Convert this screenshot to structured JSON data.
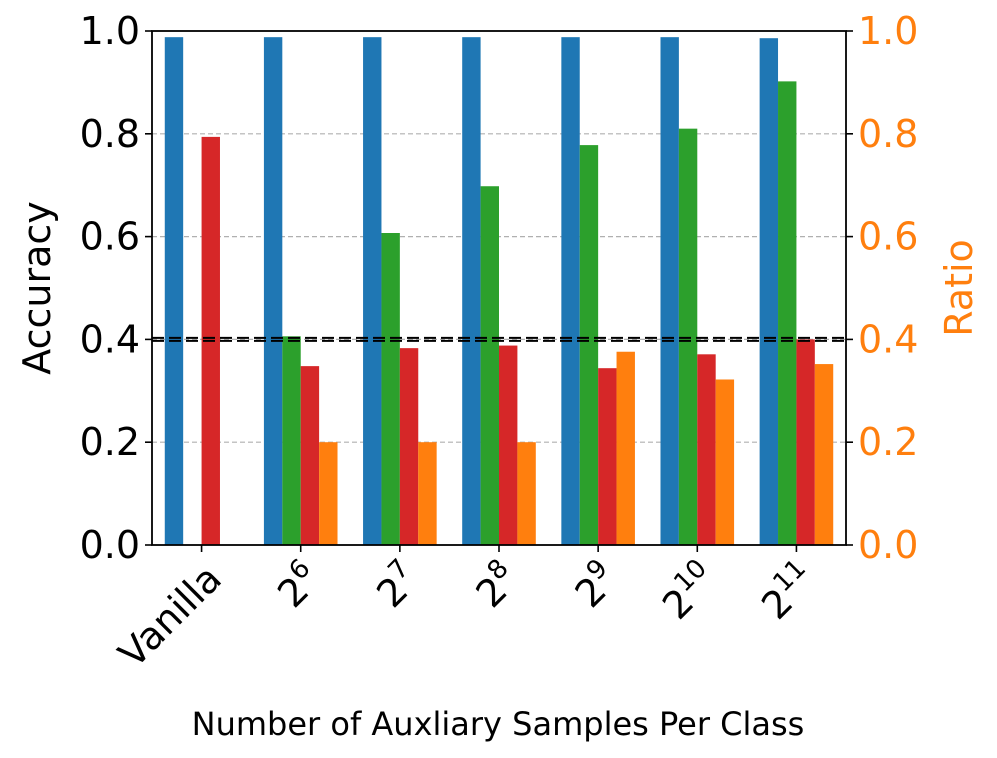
{
  "chart_data": {
    "type": "bar",
    "categories": [
      {
        "base": "Vanilla",
        "exp": ""
      },
      {
        "base": "2",
        "exp": "6"
      },
      {
        "base": "2",
        "exp": "7"
      },
      {
        "base": "2",
        "exp": "8"
      },
      {
        "base": "2",
        "exp": "9"
      },
      {
        "base": "2",
        "exp": "10"
      },
      {
        "base": "2",
        "exp": "11"
      }
    ],
    "series": [
      {
        "name": "blue",
        "axis": "left",
        "color": "#1f77b4",
        "values": [
          0.988,
          0.988,
          0.988,
          0.988,
          0.988,
          0.988,
          0.986
        ]
      },
      {
        "name": "green",
        "axis": "left",
        "color": "#2ca02c",
        "values": [
          null,
          0.406,
          0.607,
          0.698,
          0.778,
          0.81,
          0.902
        ]
      },
      {
        "name": "red",
        "axis": "left",
        "color": "#d62728",
        "values": [
          0.794,
          0.348,
          0.383,
          0.388,
          0.344,
          0.371,
          0.4
        ]
      },
      {
        "name": "orange",
        "axis": "right",
        "color": "#ff7f0e",
        "values": [
          null,
          0.2,
          0.2,
          0.2,
          0.376,
          0.322,
          0.352
        ]
      }
    ],
    "xlabel": "Number of Auxliary Samples Per Class",
    "ylabel": "Accuracy",
    "ylabel_right": "Ratio",
    "ylim": [
      0.0,
      1.0
    ],
    "ylim_right": [
      0.0,
      1.0
    ],
    "yticks": [
      "0.0",
      "0.2",
      "0.4",
      "0.6",
      "0.8",
      "1.0"
    ],
    "yticks_right": [
      "0.0",
      "0.2",
      "0.4",
      "0.6",
      "0.8",
      "1.0"
    ],
    "hlines": [
      {
        "y": 0.4,
        "style": "dashed",
        "color": "#000000"
      },
      {
        "y": 0.4,
        "style": "dashed",
        "color": "#000000"
      }
    ],
    "grid": "horizontal-dashed"
  }
}
